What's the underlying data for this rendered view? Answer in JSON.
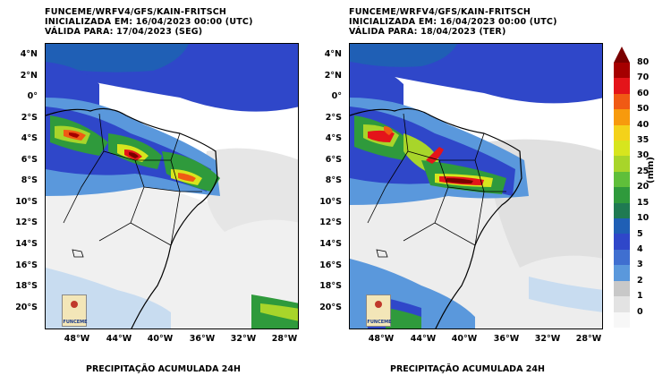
{
  "panels": [
    {
      "title_line1": "FUNCEME/WRFV4/GFS/KAIN-FRITSCH",
      "title_line2": "INICIALIZADA EM: 16/04/2023 00:00 (UTC)",
      "title_line3": "VÁLIDA PARA: 17/04/2023 (SEG)",
      "caption": "PRECIPITAÇÃO ACUMULADA 24H",
      "logo_text": "FUNCEME"
    },
    {
      "title_line1": "FUNCEME/WRFV4/GFS/KAIN-FRITSCH",
      "title_line2": "INICIALIZADA EM: 16/04/2023 00:00 (UTC)",
      "title_line3": "VÁLIDA PARA: 18/04/2023 (TER)",
      "caption": "PRECIPITAÇÃO ACUMULADA 24H",
      "logo_text": "FUNCEME"
    }
  ],
  "lat_labels": [
    "4°N",
    "2°N",
    "0°",
    "2°S",
    "4°S",
    "6°S",
    "8°S",
    "10°S",
    "12°S",
    "14°S",
    "16°S",
    "18°S",
    "20°S"
  ],
  "lon_labels": [
    "48°W",
    "44°W",
    "40°W",
    "36°W",
    "32°W",
    "28°W"
  ],
  "colorbar": {
    "unit": "(mm)",
    "ticks": [
      "80",
      "70",
      "60",
      "50",
      "40",
      "35",
      "30",
      "25",
      "20",
      "15",
      "10",
      "5",
      "4",
      "3",
      "2",
      "1",
      "0"
    ],
    "colors": [
      "#a50000",
      "#e4141a",
      "#f05a14",
      "#f79a0d",
      "#f4d21a",
      "#d7e51e",
      "#a8d52a",
      "#5fbf3a",
      "#2f9a3c",
      "#1f7a52",
      "#1f5fb5",
      "#2f47c9",
      "#3f6fd0",
      "#5a98dc",
      "#c8c8c8",
      "#e3e3e3",
      "#f7f7f7"
    ]
  }
}
